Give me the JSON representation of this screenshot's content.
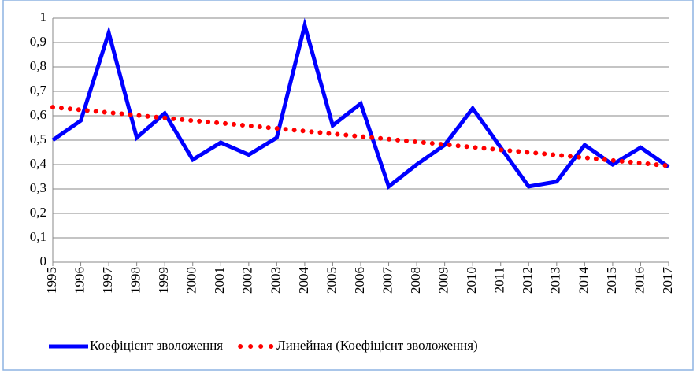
{
  "chart_data": {
    "type": "line",
    "categories": [
      "1995",
      "1996",
      "1997",
      "1998",
      "1999",
      "2000",
      "2001",
      "2002",
      "2003",
      "2004",
      "2005",
      "2006",
      "2007",
      "2008",
      "2009",
      "2010",
      "2011",
      "2012",
      "2013",
      "2014",
      "2015",
      "2016",
      "2017"
    ],
    "series": [
      {
        "name": "Коефіцієнт зволоження",
        "color": "#0000ff",
        "style": "solid",
        "values": [
          0.5,
          0.58,
          0.94,
          0.51,
          0.61,
          0.42,
          0.49,
          0.44,
          0.51,
          0.97,
          0.56,
          0.65,
          0.31,
          0.4,
          0.48,
          0.63,
          0.47,
          0.31,
          0.33,
          0.48,
          0.4,
          0.47,
          0.39
        ]
      },
      {
        "name": "Линейная (Коефіцієнт зволоження)",
        "color": "#ff0000",
        "style": "dotted",
        "values": [
          0.635,
          0.624,
          0.613,
          0.602,
          0.591,
          0.58,
          0.57,
          0.559,
          0.548,
          0.537,
          0.526,
          0.515,
          0.504,
          0.493,
          0.482,
          0.471,
          0.46,
          0.45,
          0.439,
          0.428,
          0.417,
          0.406,
          0.395
        ]
      }
    ],
    "ylim": [
      0,
      1
    ],
    "yticks": [
      0,
      {
        "value": 0.1,
        "label": "0,1"
      },
      {
        "value": 0.2,
        "label": "0,2"
      },
      {
        "value": 0.3,
        "label": "0,3"
      },
      {
        "value": 0.4,
        "label": "0,4"
      },
      {
        "value": 0.5,
        "label": "0,5"
      },
      {
        "value": 0.6,
        "label": "0,6"
      },
      {
        "value": 0.7,
        "label": "0,7"
      },
      {
        "value": 0.8,
        "label": "0,8"
      },
      {
        "value": 0.9,
        "label": "0,9"
      },
      1
    ],
    "grid": true,
    "legend": "bottom"
  }
}
